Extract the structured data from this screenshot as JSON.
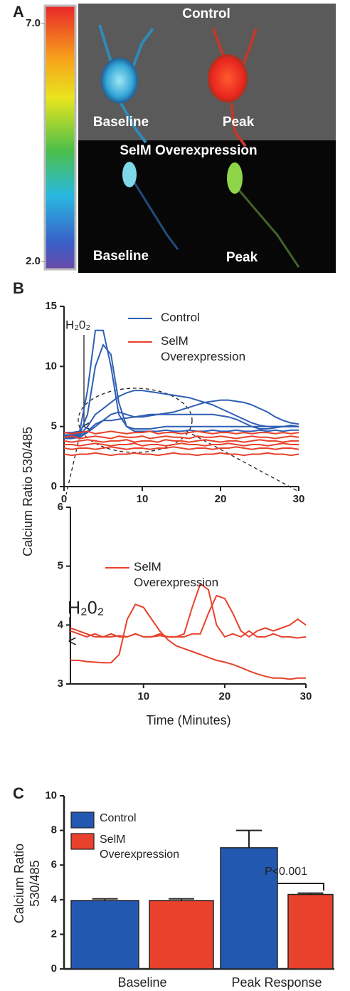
{
  "chart_data": [
    {
      "type": "image",
      "panel": "A",
      "clim": [
        2,
        7
      ],
      "cticks": [
        {
          "value": 7,
          "label": "7.0"
        },
        {
          "value": 2,
          "label": "2.0"
        }
      ],
      "labels": [
        "Control",
        "Baseline",
        "Peak",
        "SelM Overexpression",
        "Baseline",
        "Peak"
      ]
    },
    {
      "type": "line",
      "panel": "B",
      "ylabel": "Calcium Ratio 530/485",
      "annotation": "H₂0₂",
      "x": [
        0,
        1,
        2,
        3,
        4,
        5,
        6,
        7,
        8,
        9,
        10,
        11,
        12,
        13,
        14,
        15,
        16,
        17,
        18,
        19,
        20,
        21,
        22,
        23,
        24,
        25,
        26,
        27,
        28,
        29,
        30
      ],
      "xlim": [
        0,
        30
      ],
      "ylim": [
        0,
        15
      ],
      "xticks": [
        0,
        10,
        20,
        30
      ],
      "yticks": [
        0,
        5,
        10,
        15
      ],
      "series": [
        {
          "name": "Control",
          "color": "#2f5fb5",
          "traces": [
            [
              4.5,
              4.5,
              4.6,
              8,
              13,
              13,
              10,
              6,
              5,
              4.8,
              4.8,
              4.8,
              4.9,
              5,
              5,
              5,
              5,
              5,
              5,
              5,
              5,
              5,
              5,
              5,
              5,
              5,
              5,
              5,
              5,
              5,
              5
            ],
            [
              4.3,
              4.3,
              4.4,
              6,
              10,
              11.8,
              11,
              7,
              5,
              4.6,
              4.6,
              4.6,
              4.6,
              4.7,
              4.6,
              4.6,
              4.7,
              4.6,
              4.6,
              4.7,
              4.6,
              4.6,
              4.7,
              4.6,
              4.6,
              4.7,
              4.6,
              4.7,
              4.6,
              4.7,
              4.7
            ],
            [
              4.2,
              4.2,
              4.3,
              5,
              6,
              6.5,
              7,
              7.5,
              7.8,
              8,
              8,
              7.9,
              7.8,
              7.7,
              7.6,
              7.5,
              7.4,
              7.2,
              7,
              6.8,
              6.5,
              6.2,
              5.9,
              5.6,
              5.3,
              5.1,
              5,
              5,
              5,
              5,
              5
            ],
            [
              4,
              4,
              4.1,
              4.5,
              5,
              5.5,
              6,
              6.2,
              6,
              5.8,
              5.8,
              5.9,
              6,
              6.1,
              6.2,
              6.4,
              6.6,
              6.8,
              7,
              7.1,
              7.2,
              7.2,
              7.1,
              7,
              6.8,
              6.5,
              6.2,
              5.8,
              5.5,
              5.3,
              5.2
            ],
            [
              4.1,
              4.1,
              4.2,
              4.6,
              5.2,
              5.5,
              5.5,
              5.6,
              5.7,
              5.8,
              5.9,
              6,
              6,
              6,
              6,
              6,
              6,
              6,
              6,
              6,
              5.9,
              5.8,
              5.6,
              5.3,
              5,
              4.8,
              4.8,
              4.9,
              5,
              5.1,
              5
            ]
          ]
        },
        {
          "name": "SelM Overexpression",
          "color": "#e8412c",
          "traces": [
            [
              4.5,
              4.4,
              4.5,
              4.6,
              4.4,
              4.5,
              4.6,
              4.5,
              4.4,
              4.5,
              4.5,
              4.6,
              4.4,
              4.5,
              4.5,
              4.4,
              4.5,
              4.6,
              4.5,
              4.4,
              4.5,
              4.5,
              4.4,
              4.5,
              4.4,
              4.5,
              4.5,
              4.4,
              4.5,
              4.4,
              4.5
            ],
            [
              4.1,
              4.2,
              4.0,
              4.1,
              4.2,
              4.1,
              4.0,
              4.2,
              4.1,
              4.1,
              4.2,
              4.0,
              4.1,
              4.2,
              4.1,
              4.1,
              4.0,
              4.2,
              4.1,
              4.1,
              4.2,
              4.1,
              4.0,
              4.1,
              4.2,
              4.1,
              4.1,
              4.0,
              4.1,
              4.2,
              4.1
            ],
            [
              3.8,
              3.7,
              3.8,
              3.9,
              3.8,
              3.7,
              3.8,
              3.8,
              3.9,
              3.7,
              3.8,
              3.8,
              3.7,
              3.9,
              3.8,
              3.8,
              3.7,
              3.8,
              3.9,
              3.8,
              3.7,
              3.8,
              3.8,
              3.7,
              3.8,
              3.9,
              3.8,
              3.8,
              3.7,
              3.8,
              3.8
            ],
            [
              3.5,
              3.5,
              3.4,
              3.5,
              3.6,
              3.5,
              3.4,
              3.5,
              3.5,
              3.6,
              3.4,
              3.5,
              3.5,
              3.4,
              3.5,
              3.6,
              3.5,
              3.5,
              3.4,
              3.5,
              3.5,
              3.6,
              3.5,
              3.4,
              3.5,
              3.5,
              3.4,
              3.5,
              3.6,
              3.5,
              3.5
            ],
            [
              3.2,
              3.1,
              3.2,
              3.2,
              3.1,
              3.2,
              3.3,
              3.2,
              3.1,
              3.2,
              3.2,
              3.1,
              3.2,
              3.2,
              3.3,
              3.2,
              3.1,
              3.2,
              3.2,
              3.1,
              3.2,
              3.2,
              3.3,
              3.2,
              3.1,
              3.2,
              3.2,
              3.1,
              3.2,
              3.2,
              3.1
            ],
            [
              2.7,
              2.6,
              2.7,
              2.7,
              2.8,
              2.7,
              2.6,
              2.7,
              2.7,
              2.8,
              2.7,
              2.7,
              2.6,
              2.7,
              2.8,
              2.7,
              2.7,
              2.6,
              2.7,
              2.7,
              2.8,
              2.7,
              2.7,
              2.6,
              2.7,
              2.7,
              2.8,
              2.7,
              2.7,
              2.6,
              2.7
            ]
          ]
        }
      ]
    },
    {
      "type": "line",
      "xlabel": "Time (Minutes)",
      "annotation": "H₂0₂",
      "x": [
        1,
        2,
        3,
        4,
        5,
        6,
        7,
        8,
        9,
        10,
        11,
        12,
        13,
        14,
        15,
        16,
        17,
        18,
        19,
        20,
        21,
        22,
        23,
        24,
        25,
        26,
        27,
        28,
        29,
        30
      ],
      "xlim": [
        1,
        30
      ],
      "ylim": [
        3,
        6
      ],
      "xticks": [
        10,
        20,
        30
      ],
      "yticks": [
        3,
        4,
        5,
        6
      ],
      "series": [
        {
          "name": "SelM Overexpression",
          "color": "#e8412c",
          "traces": [
            [
              3.4,
              3.4,
              3.38,
              3.37,
              3.36,
              3.36,
              3.5,
              4.1,
              4.35,
              4.3,
              4.1,
              3.9,
              3.75,
              3.65,
              3.6,
              3.55,
              3.5,
              3.45,
              3.4,
              3.37,
              3.33,
              3.28,
              3.22,
              3.17,
              3.13,
              3.1,
              3.1,
              3.08,
              3.1,
              3.1
            ],
            [
              3.9,
              3.85,
              3.8,
              3.85,
              3.8,
              3.8,
              3.82,
              3.8,
              3.85,
              3.8,
              3.8,
              3.82,
              3.8,
              3.8,
              3.85,
              4.3,
              4.7,
              4.6,
              4.0,
              3.8,
              3.85,
              3.8,
              3.9,
              3.8,
              3.8,
              3.85,
              3.8,
              3.8,
              3.78,
              3.8
            ],
            [
              3.95,
              3.9,
              3.85,
              3.8,
              3.8,
              3.85,
              3.8,
              3.8,
              3.85,
              3.8,
              3.8,
              3.85,
              3.8,
              3.8,
              3.8,
              3.85,
              3.85,
              4.2,
              4.5,
              4.45,
              4.2,
              3.9,
              3.8,
              3.9,
              3.95,
              3.9,
              3.95,
              4.0,
              4.1,
              4.0
            ]
          ]
        }
      ]
    },
    {
      "type": "bar",
      "panel": "C",
      "ylabel": [
        "Calcium Ratio",
        "530/485"
      ],
      "annotation": "P<0.001",
      "categories": [
        "Baseline",
        "Peak Response"
      ],
      "ylim": [
        0,
        10
      ],
      "yticks": [
        0,
        2,
        4,
        6,
        8,
        10
      ],
      "series": [
        {
          "name": "Control",
          "color": "#2358b0",
          "values": [
            3.95,
            7.0
          ],
          "errors": [
            0.1,
            1.0
          ]
        },
        {
          "name": "SelM Overexpression",
          "color": "#e8412c",
          "values": [
            3.95,
            4.3
          ],
          "errors": [
            0.1,
            0.08
          ]
        }
      ]
    }
  ]
}
